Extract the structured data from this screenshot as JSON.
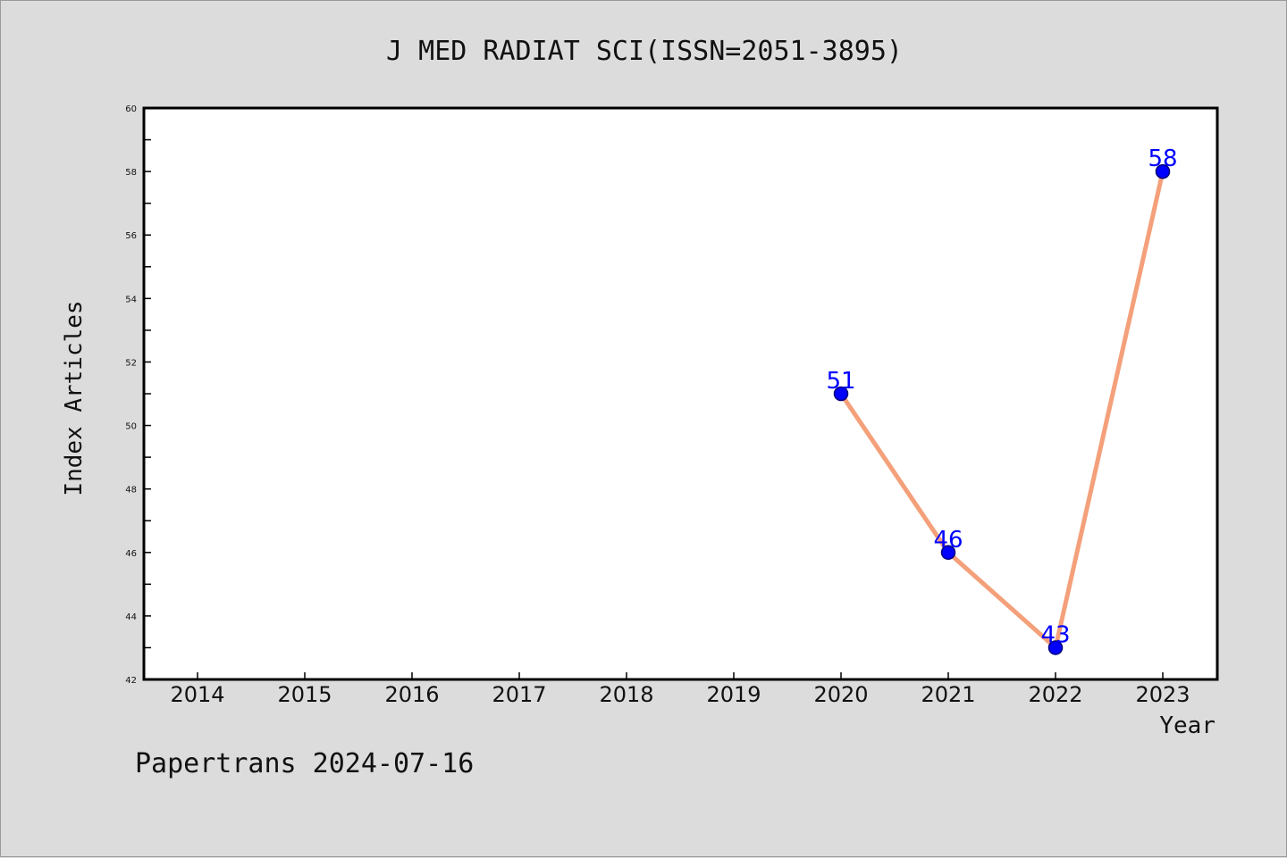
{
  "chart_data": {
    "type": "line",
    "title": "J MED RADIAT SCI(ISSN=2051-3895)",
    "xlabel": "Year",
    "ylabel": "Index Articles",
    "categories": [
      "2014",
      "2015",
      "2016",
      "2017",
      "2018",
      "2019",
      "2020",
      "2021",
      "2022",
      "2023"
    ],
    "series": [
      {
        "x": [
          "2020",
          "2021",
          "2022",
          "2023"
        ],
        "values": [
          51,
          46,
          43,
          58
        ]
      }
    ],
    "ylim": [
      42,
      60
    ],
    "yticks": [
      42,
      44,
      46,
      48,
      50,
      52,
      54,
      56,
      58,
      60
    ],
    "grid": false,
    "colors": {
      "line": "#f4a07a",
      "marker": "#0000ff",
      "label": "#0000ff"
    }
  },
  "footer": {
    "text": "Papertrans 2024-07-16"
  }
}
